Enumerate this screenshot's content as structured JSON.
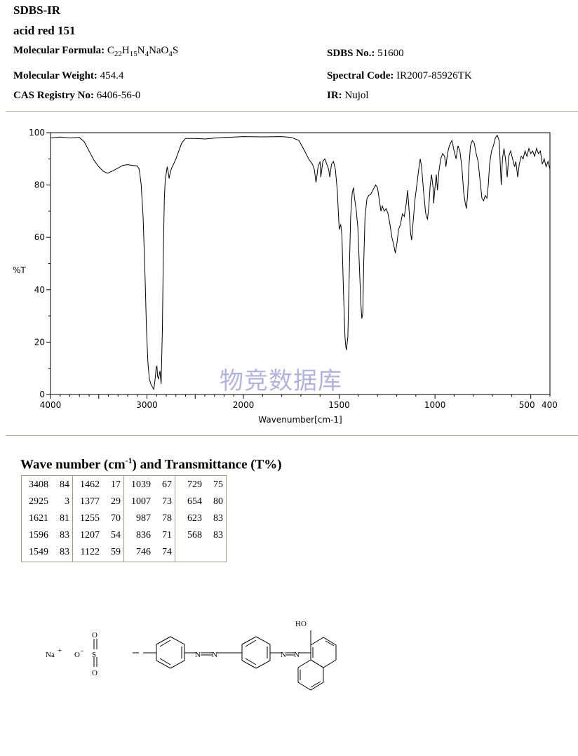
{
  "header": {
    "source": "SDBS-IR",
    "compound": "acid red 151",
    "formula_label": "Molecular Formula:",
    "formula_parts": [
      "C",
      "22",
      "H",
      "15",
      "N",
      "4",
      "NaO",
      "4",
      "S"
    ],
    "mw_label": "Molecular Weight:",
    "mw_value": "454.4",
    "cas_label": "CAS Registry No:",
    "cas_value": "6406-56-0",
    "sdbs_label": "SDBS No.:",
    "sdbs_value": "51600",
    "spectral_label": "Spectral Code:",
    "spectral_value": "IR2007-85926TK",
    "ir_label": "IR:",
    "ir_value": "Nujol"
  },
  "watermark": "物竞数据库",
  "chart_data": {
    "type": "line",
    "ylabel": "%T",
    "xlabel": "Wavenumber[cm-1]",
    "y_ticks": [
      0,
      20,
      40,
      60,
      80,
      100
    ],
    "x_ticks": [
      {
        "value": 4000,
        "label": "4000"
      },
      {
        "value": 3000,
        "label": "3000"
      },
      {
        "value": 2000,
        "label": "2000"
      },
      {
        "value": 1500,
        "label": "1500"
      },
      {
        "value": 1000,
        "label": "1000"
      },
      {
        "value": 500,
        "label": "500"
      },
      {
        "value": 400,
        "label": "400"
      }
    ],
    "x_axis": "wavenumber, 4000 to 2000 linear then 2000 to 400 linear at double scale (decreasing left to right)",
    "ylim": [
      0,
      100
    ],
    "series": [
      {
        "points": [
          [
            4000,
            98
          ],
          [
            3900,
            98.3
          ],
          [
            3800,
            98
          ],
          [
            3700,
            98.2
          ],
          [
            3650,
            96.5
          ],
          [
            3600,
            93
          ],
          [
            3550,
            89.5
          ],
          [
            3500,
            87
          ],
          [
            3450,
            85.2
          ],
          [
            3408,
            84.5
          ],
          [
            3350,
            85.5
          ],
          [
            3300,
            86.5
          ],
          [
            3250,
            87.5
          ],
          [
            3200,
            87.8
          ],
          [
            3150,
            87.5
          ],
          [
            3100,
            87.3
          ],
          [
            3080,
            86
          ],
          [
            3060,
            80
          ],
          [
            3040,
            68
          ],
          [
            3020,
            45
          ],
          [
            3005,
            25
          ],
          [
            2990,
            12
          ],
          [
            2975,
            6
          ],
          [
            2960,
            4
          ],
          [
            2945,
            3
          ],
          [
            2930,
            2
          ],
          [
            2925,
            3
          ],
          [
            2915,
            6
          ],
          [
            2905,
            10
          ],
          [
            2897,
            11
          ],
          [
            2890,
            7
          ],
          [
            2880,
            6
          ],
          [
            2865,
            9
          ],
          [
            2853,
            4
          ],
          [
            2840,
            25
          ],
          [
            2830,
            55
          ],
          [
            2820,
            75
          ],
          [
            2810,
            82
          ],
          [
            2800,
            84.5
          ],
          [
            2790,
            87
          ],
          [
            2780,
            85
          ],
          [
            2770,
            82.5
          ],
          [
            2760,
            84.5
          ],
          [
            2745,
            86.5
          ],
          [
            2730,
            87.5
          ],
          [
            2700,
            90
          ],
          [
            2670,
            93
          ],
          [
            2640,
            96
          ],
          [
            2600,
            97.8
          ],
          [
            2500,
            97.8
          ],
          [
            2400,
            97.6
          ],
          [
            2300,
            97.9
          ],
          [
            2200,
            98.2
          ],
          [
            2100,
            98.3
          ],
          [
            2000,
            98.5
          ],
          [
            1900,
            98.4
          ],
          [
            1800,
            98.5
          ],
          [
            1750,
            98.2
          ],
          [
            1710,
            97
          ],
          [
            1680,
            93
          ],
          [
            1660,
            90
          ],
          [
            1640,
            88
          ],
          [
            1630,
            86
          ],
          [
            1621,
            81
          ],
          [
            1610,
            87
          ],
          [
            1600,
            89
          ],
          [
            1596,
            83
          ],
          [
            1585,
            89
          ],
          [
            1575,
            90
          ],
          [
            1565,
            88
          ],
          [
            1555,
            86
          ],
          [
            1549,
            83
          ],
          [
            1540,
            88
          ],
          [
            1530,
            89
          ],
          [
            1520,
            86
          ],
          [
            1510,
            78
          ],
          [
            1500,
            63
          ],
          [
            1492,
            65
          ],
          [
            1486,
            61
          ],
          [
            1478,
            40
          ],
          [
            1470,
            22
          ],
          [
            1465,
            18
          ],
          [
            1462,
            17
          ],
          [
            1455,
            22
          ],
          [
            1448,
            45
          ],
          [
            1440,
            68
          ],
          [
            1432,
            77
          ],
          [
            1425,
            79
          ],
          [
            1420,
            75
          ],
          [
            1412,
            71
          ],
          [
            1403,
            64
          ],
          [
            1395,
            50
          ],
          [
            1387,
            35
          ],
          [
            1382,
            29
          ],
          [
            1377,
            31
          ],
          [
            1372,
            50
          ],
          [
            1365,
            68
          ],
          [
            1355,
            75
          ],
          [
            1345,
            76
          ],
          [
            1335,
            76.5
          ],
          [
            1325,
            78
          ],
          [
            1310,
            80
          ],
          [
            1300,
            79
          ],
          [
            1290,
            74
          ],
          [
            1282,
            70
          ],
          [
            1275,
            72
          ],
          [
            1265,
            70
          ],
          [
            1255,
            71
          ],
          [
            1245,
            69
          ],
          [
            1235,
            65
          ],
          [
            1225,
            60
          ],
          [
            1215,
            57
          ],
          [
            1207,
            54
          ],
          [
            1198,
            58
          ],
          [
            1190,
            63
          ],
          [
            1180,
            65
          ],
          [
            1170,
            69
          ],
          [
            1160,
            68
          ],
          [
            1150,
            73
          ],
          [
            1143,
            78
          ],
          [
            1135,
            70
          ],
          [
            1128,
            62
          ],
          [
            1122,
            59
          ],
          [
            1115,
            65
          ],
          [
            1105,
            74
          ],
          [
            1095,
            80
          ],
          [
            1085,
            86
          ],
          [
            1077,
            90
          ],
          [
            1070,
            87
          ],
          [
            1060,
            78
          ],
          [
            1050,
            70
          ],
          [
            1045,
            68
          ],
          [
            1039,
            67
          ],
          [
            1032,
            72
          ],
          [
            1025,
            80
          ],
          [
            1018,
            84
          ],
          [
            1010,
            79
          ],
          [
            1007,
            73
          ],
          [
            1000,
            79
          ],
          [
            993,
            84
          ],
          [
            987,
            78
          ],
          [
            980,
            85
          ],
          [
            970,
            90
          ],
          [
            960,
            92
          ],
          [
            950,
            91
          ],
          [
            943,
            87
          ],
          [
            935,
            92
          ],
          [
            925,
            95
          ],
          [
            912,
            97
          ],
          [
            900,
            93
          ],
          [
            890,
            90
          ],
          [
            880,
            95
          ],
          [
            870,
            93
          ],
          [
            860,
            87
          ],
          [
            850,
            77
          ],
          [
            842,
            73
          ],
          [
            836,
            71
          ],
          [
            830,
            76
          ],
          [
            822,
            88
          ],
          [
            815,
            95
          ],
          [
            805,
            97
          ],
          [
            795,
            96
          ],
          [
            785,
            92
          ],
          [
            775,
            89
          ],
          [
            768,
            84
          ],
          [
            762,
            80
          ],
          [
            755,
            75
          ],
          [
            746,
            74
          ],
          [
            738,
            76
          ],
          [
            729,
            75
          ],
          [
            722,
            80
          ],
          [
            715,
            88
          ],
          [
            705,
            93
          ],
          [
            695,
            95
          ],
          [
            685,
            98
          ],
          [
            675,
            99
          ],
          [
            665,
            97
          ],
          [
            654,
            80
          ],
          [
            648,
            90
          ],
          [
            640,
            94
          ],
          [
            632,
            90
          ],
          [
            623,
            83
          ],
          [
            615,
            91
          ],
          [
            605,
            93
          ],
          [
            595,
            90
          ],
          [
            585,
            87
          ],
          [
            578,
            89
          ],
          [
            568,
            83
          ],
          [
            560,
            88
          ],
          [
            550,
            91
          ],
          [
            540,
            90
          ],
          [
            530,
            93
          ],
          [
            520,
            91
          ],
          [
            510,
            94
          ],
          [
            500,
            92
          ],
          [
            490,
            93
          ],
          [
            480,
            91
          ],
          [
            470,
            94
          ],
          [
            460,
            92
          ],
          [
            450,
            93
          ],
          [
            440,
            88
          ],
          [
            430,
            90
          ],
          [
            420,
            87
          ],
          [
            410,
            89
          ],
          [
            400,
            86
          ]
        ]
      }
    ]
  },
  "peak_table": {
    "title_pre": "Wave number (cm",
    "title_sup": "-1",
    "title_post": ") and Transmittance (T%)",
    "columns": [
      [
        [
          "3408",
          "84"
        ],
        [
          "2925",
          "3"
        ],
        [
          "1621",
          "81"
        ],
        [
          "1596",
          "83"
        ],
        [
          "1549",
          "83"
        ]
      ],
      [
        [
          "1462",
          "17"
        ],
        [
          "1377",
          "29"
        ],
        [
          "1255",
          "70"
        ],
        [
          "1207",
          "54"
        ],
        [
          "1122",
          "59"
        ]
      ],
      [
        [
          "1039",
          "67"
        ],
        [
          "1007",
          "73"
        ],
        [
          "987",
          "78"
        ],
        [
          "836",
          "71"
        ],
        [
          "746",
          "74"
        ]
      ],
      [
        [
          "729",
          "75"
        ],
        [
          "654",
          "80"
        ],
        [
          "623",
          "83"
        ],
        [
          "568",
          "83"
        ]
      ]
    ]
  },
  "structure": {
    "cation": "Na",
    "cation_charge": "+",
    "anion_o": "O",
    "anion_charge": "-",
    "sulfur": "S",
    "oxo_top": "O",
    "oxo_bottom": "O",
    "azo1": [
      "N",
      "N"
    ],
    "azo2": [
      "N",
      "N"
    ],
    "hydroxyl": "HO"
  }
}
